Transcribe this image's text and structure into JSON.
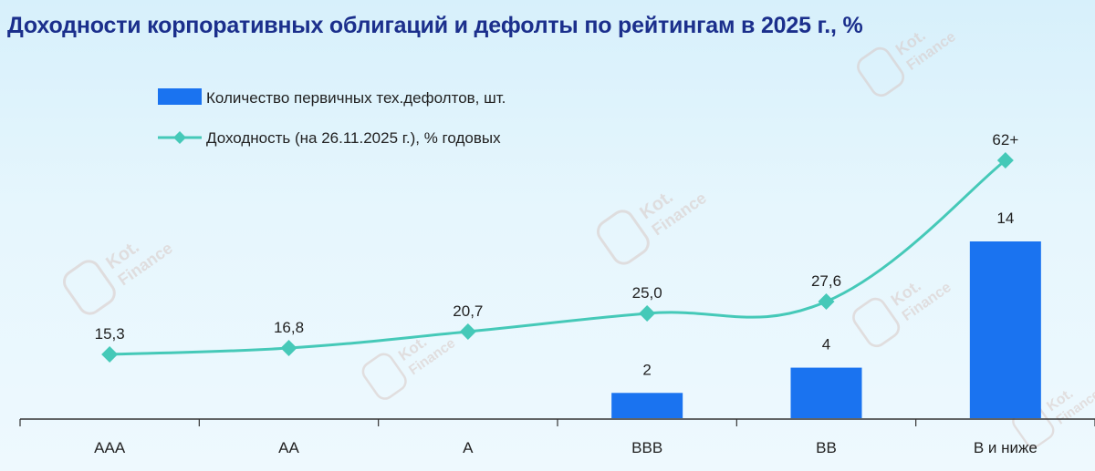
{
  "title": "Доходности корпоративных облигаций и дефолты по рейтингам в 2025 г., %",
  "watermark": {
    "line1": "Kot.",
    "line2": "Finance"
  },
  "colors": {
    "bar": "#1a73f0",
    "line": "#45c9b8",
    "title": "#1b2f8c",
    "axis": "#333333"
  },
  "chart_data": {
    "type": "bar+line",
    "categories": [
      "AAA",
      "AA",
      "A",
      "BBB",
      "BB",
      "B и ниже"
    ],
    "series": [
      {
        "name": "Количество первичных тех.дефолтов, шт.",
        "type": "bar",
        "values": [
          null,
          null,
          null,
          2,
          4,
          14
        ],
        "labels": [
          "",
          "",
          "",
          "2",
          "4",
          "14"
        ]
      },
      {
        "name": "Доходность (на 26.11.2025 г.), % годовых",
        "type": "line",
        "marker": "diamond",
        "values": [
          15.3,
          16.8,
          20.7,
          25.0,
          27.6,
          62
        ],
        "labels": [
          "15,3",
          "16,8",
          "20,7",
          "25,0",
          "27,6",
          "62+"
        ]
      }
    ],
    "legend_position": "top-left",
    "grid": false
  }
}
